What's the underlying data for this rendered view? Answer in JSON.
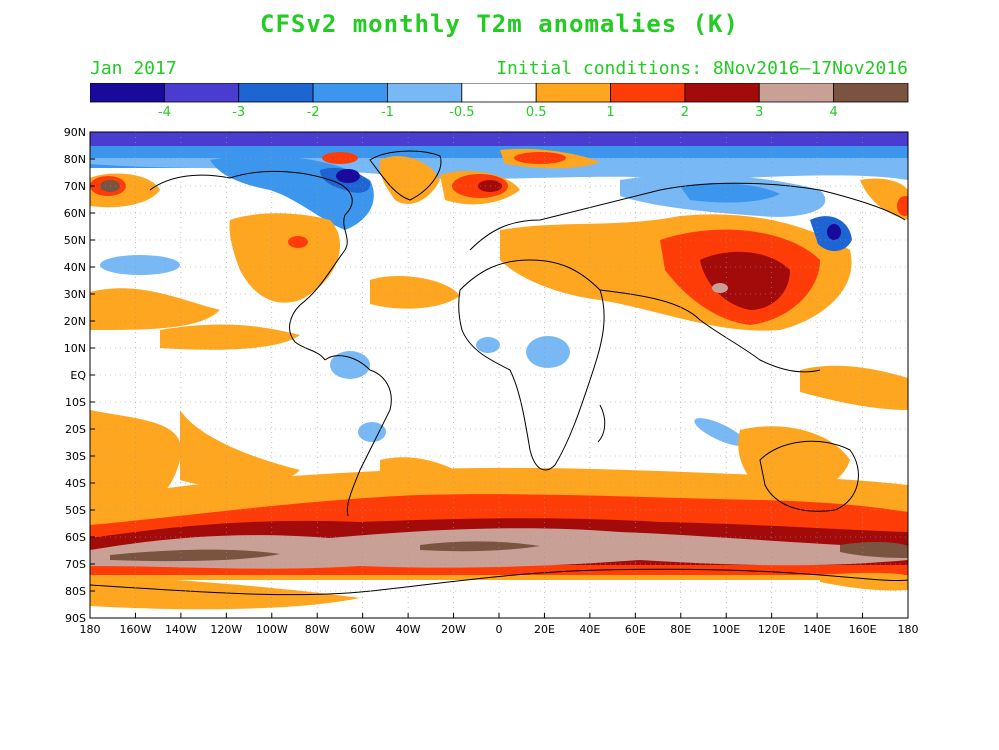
{
  "title": "CFSv2 monthly T2m anomalies (K)",
  "valid_label": "Jan 2017",
  "init_label": "Initial conditions: 8Nov2016–17Nov2016",
  "colorbar": {
    "colors": [
      "#1a0a9c",
      "#4a3cd0",
      "#1e64d2",
      "#3c96ee",
      "#78b9f5",
      "#ffffff",
      "#fea620",
      "#fe3c08",
      "#a30a0a",
      "#c9a096",
      "#7a5440"
    ],
    "labels": [
      "-4",
      "-3",
      "-2",
      "-1",
      "-0.5",
      "0.5",
      "1",
      "2",
      "3",
      "4"
    ]
  },
  "axes": {
    "lat_labels": [
      "90N",
      "80N",
      "70N",
      "60N",
      "50N",
      "40N",
      "30N",
      "20N",
      "10N",
      "EQ",
      "10S",
      "20S",
      "30S",
      "40S",
      "50S",
      "60S",
      "70S",
      "80S",
      "90S"
    ],
    "lon_labels": [
      "180",
      "160W",
      "140W",
      "120W",
      "100W",
      "80W",
      "60W",
      "40W",
      "20W",
      "0",
      "20E",
      "40E",
      "60E",
      "80E",
      "100E",
      "120E",
      "140E",
      "160E",
      "180"
    ]
  }
}
